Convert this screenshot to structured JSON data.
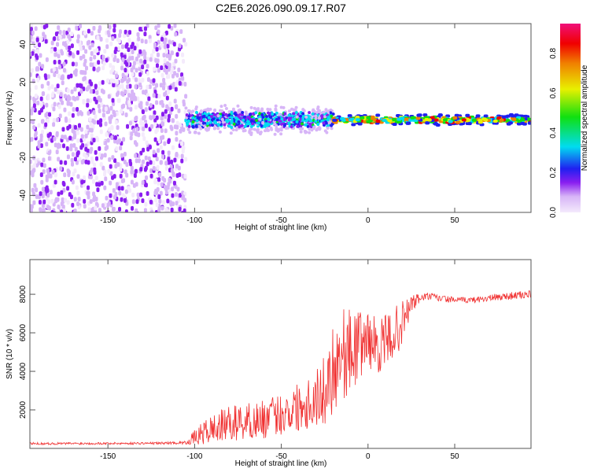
{
  "title": "C2E6.2026.090.09.17.R07",
  "chart_data": [
    {
      "type": "heatmap",
      "name": "spectrogram",
      "xlabel": "Height of straight line (km)",
      "ylabel": "Frequency (Hz)",
      "xlim": [
        -195,
        94
      ],
      "ylim": [
        -49,
        51
      ],
      "xticks": [
        -150,
        -100,
        -50,
        0,
        50
      ],
      "yticks": [
        -40,
        -20,
        0,
        20,
        40
      ],
      "colorbar": {
        "label": "Normalized spectral amplitude",
        "range": [
          0,
          0.95
        ],
        "ticks": [
          "0.0",
          "0.2",
          "0.4",
          "0.6",
          "0.8"
        ]
      },
      "regions": [
        {
          "x": [
            -195,
            -105
          ],
          "freq_halfwidth": 50,
          "amplitude": [
            0.05,
            0.18
          ]
        },
        {
          "x": [
            -105,
            -20
          ],
          "freq_halfwidth": 8,
          "amplitude": [
            0.1,
            0.5
          ]
        },
        {
          "x": [
            -20,
            94
          ],
          "freq_halfwidth": 3,
          "amplitude": [
            0.3,
            0.9
          ]
        }
      ]
    },
    {
      "type": "line",
      "name": "snr",
      "xlabel": "Height of straight line (km)",
      "ylabel": "SNR (10 * v/v)",
      "xlim": [
        -195,
        94
      ],
      "ylim": [
        0,
        9800
      ],
      "xticks": [
        -150,
        -100,
        -50,
        0,
        50
      ],
      "yticks": [
        2000,
        4000,
        6000,
        8000
      ],
      "color": "#f03030",
      "x": [
        -195,
        -180,
        -160,
        -140,
        -120,
        -105,
        -100,
        -95,
        -90,
        -80,
        -70,
        -60,
        -50,
        -40,
        -30,
        -25,
        -20,
        -15,
        -10,
        -5,
        0,
        5,
        10,
        15,
        20,
        25,
        30,
        35,
        40,
        50,
        60,
        70,
        80,
        94
      ],
      "y": [
        250,
        250,
        260,
        260,
        270,
        300,
        550,
        800,
        1000,
        1300,
        1400,
        1500,
        1800,
        2200,
        2600,
        3000,
        4300,
        5000,
        5000,
        5400,
        5700,
        5300,
        5500,
        6000,
        6500,
        7500,
        7800,
        7900,
        7800,
        7700,
        7700,
        7800,
        7900,
        8000
      ],
      "spread": [
        60,
        60,
        60,
        60,
        60,
        80,
        400,
        600,
        800,
        900,
        1000,
        1000,
        1100,
        1300,
        1600,
        1800,
        2500,
        2500,
        2200,
        1800,
        1500,
        1500,
        1400,
        1300,
        1200,
        500,
        250,
        200,
        200,
        150,
        150,
        180,
        200,
        200
      ]
    }
  ]
}
